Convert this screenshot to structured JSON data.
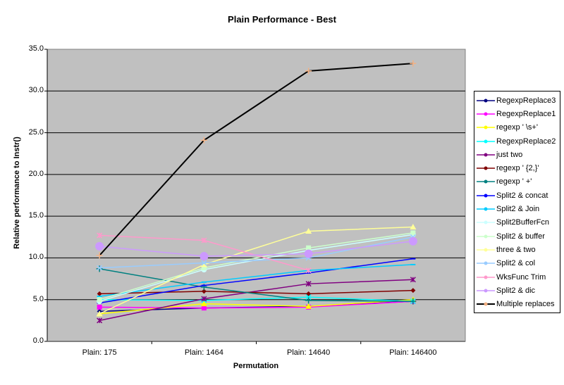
{
  "chart_data": {
    "type": "line",
    "title": "Plain Performance - Best",
    "xlabel": "Permutation",
    "ylabel": "Relative performance to Instr()",
    "categories": [
      "Plain: 175",
      "Plain: 1464",
      "Plain: 14640",
      "Plain: 146400"
    ],
    "ylim": [
      0,
      35
    ],
    "yticks": [
      "0.0",
      "5.0",
      "10.0",
      "15.0",
      "20.0",
      "25.0",
      "30.0",
      "35.0"
    ],
    "grid": true,
    "legend_position": "right",
    "series": [
      {
        "name": "RegexpReplace3",
        "color": "#000080",
        "marker": "diamond",
        "values": [
          3.6,
          4.0,
          4.2,
          4.8
        ]
      },
      {
        "name": "RegexpReplace1",
        "color": "#FF00FF",
        "marker": "square",
        "values": [
          4.1,
          4.0,
          4.1,
          4.8
        ]
      },
      {
        "name": "regexp ' \\s+'",
        "color": "#FFFF00",
        "marker": "triangle",
        "values": [
          3.3,
          4.5,
          4.2,
          5.0
        ]
      },
      {
        "name": "RegexpReplace2",
        "color": "#00FFFF",
        "marker": "x",
        "values": [
          5.0,
          4.9,
          5.3,
          4.8
        ]
      },
      {
        "name": "just two",
        "color": "#800080",
        "marker": "star",
        "values": [
          2.5,
          5.1,
          6.9,
          7.4
        ]
      },
      {
        "name": "regexp ' {2,}'",
        "color": "#800000",
        "marker": "diamond",
        "values": [
          5.7,
          6.0,
          5.7,
          6.1
        ]
      },
      {
        "name": "regexp '  +'",
        "color": "#008080",
        "marker": "plus",
        "values": [
          8.7,
          6.5,
          4.9,
          4.8
        ]
      },
      {
        "name": "Split2 & concat",
        "color": "#0000FF",
        "marker": "dash",
        "values": [
          4.6,
          6.7,
          8.2,
          9.9
        ]
      },
      {
        "name": "Split2 & Join",
        "color": "#00CCFF",
        "marker": "dash",
        "values": [
          5.4,
          7.1,
          8.5,
          9.2
        ]
      },
      {
        "name": "Split2BufferFcn",
        "color": "#CCFFFF",
        "marker": "circle",
        "values": [
          4.8,
          8.6,
          10.9,
          12.8
        ]
      },
      {
        "name": "Split2 & buffer",
        "color": "#CCFFCC",
        "marker": "square",
        "values": [
          5.0,
          8.8,
          11.2,
          13.0
        ]
      },
      {
        "name": "three & two",
        "color": "#FFFF99",
        "marker": "triangle",
        "values": [
          3.3,
          9.2,
          13.2,
          13.7
        ]
      },
      {
        "name": "Split2 & col",
        "color": "#99CCFF",
        "marker": "x",
        "values": [
          8.8,
          9.4,
          10.0,
          12.5
        ]
      },
      {
        "name": "WksFunc Trim",
        "color": "#FF99CC",
        "marker": "star",
        "values": [
          12.7,
          12.1,
          8.5,
          null
        ]
      },
      {
        "name": "Split2 & dic",
        "color": "#CC99FF",
        "marker": "circle",
        "values": [
          11.4,
          10.2,
          10.5,
          12.0
        ]
      },
      {
        "name": "Multiple replaces",
        "color": "#000000",
        "marker": "plus",
        "values": [
          10.3,
          24.1,
          32.4,
          33.3
        ]
      }
    ]
  }
}
